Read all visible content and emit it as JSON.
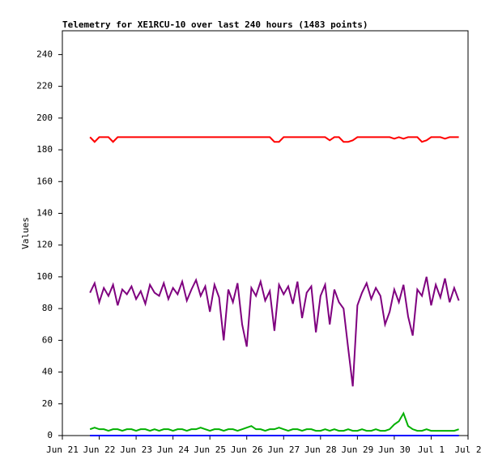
{
  "chart_data": {
    "type": "line",
    "title": "Telemetry for XE1RCU-10 over last 240 hours (1483 points)",
    "ylabel": "Values",
    "x": [
      0.75,
      0.875,
      1,
      1.125,
      1.25,
      1.375,
      1.5,
      1.625,
      1.75,
      1.875,
      2,
      2.125,
      2.25,
      2.375,
      2.5,
      2.625,
      2.75,
      2.875,
      3,
      3.125,
      3.25,
      3.375,
      3.5,
      3.625,
      3.75,
      3.875,
      4,
      4.125,
      4.25,
      4.375,
      4.5,
      4.625,
      4.75,
      4.875,
      5,
      5.125,
      5.25,
      5.375,
      5.5,
      5.625,
      5.75,
      5.875,
      6,
      6.125,
      6.25,
      6.375,
      6.5,
      6.625,
      6.75,
      6.875,
      7,
      7.125,
      7.25,
      7.375,
      7.5,
      7.625,
      7.75,
      7.875,
      8,
      8.125,
      8.25,
      8.375,
      8.5,
      8.625,
      8.75,
      8.875,
      9,
      9.125,
      9.25,
      9.375,
      9.5,
      9.625,
      9.75,
      9.875,
      10,
      10.125,
      10.25,
      10.375,
      10.5,
      10.625,
      10.75
    ],
    "series": [
      {
        "color": "#ff0000",
        "values": [
          188,
          185,
          188,
          188,
          188,
          185,
          188,
          188,
          188,
          188,
          188,
          188,
          188,
          188,
          188,
          188,
          188,
          188,
          188,
          188,
          188,
          188,
          188,
          188,
          188,
          188,
          188,
          188,
          188,
          188,
          188,
          188,
          188,
          188,
          188,
          188,
          188,
          188,
          188,
          188,
          185,
          185,
          188,
          188,
          188,
          188,
          188,
          188,
          188,
          188,
          188,
          188,
          186,
          188,
          188,
          185,
          185,
          186,
          188,
          188,
          188,
          188,
          188,
          188,
          188,
          188,
          187,
          188,
          187,
          188,
          188,
          188,
          185,
          186,
          188,
          188,
          188,
          187,
          188,
          188,
          188
        ]
      },
      {
        "color": "#7f007f",
        "values": [
          90,
          96,
          84,
          93,
          88,
          95,
          82,
          92,
          89,
          94,
          86,
          91,
          83,
          95,
          90,
          88,
          96,
          86,
          93,
          89,
          97,
          85,
          92,
          98,
          88,
          94,
          78,
          95,
          87,
          60,
          92,
          84,
          96,
          70,
          56,
          93,
          88,
          97,
          85,
          91,
          66,
          95,
          89,
          94,
          83,
          97,
          74,
          90,
          94,
          65,
          88,
          95,
          70,
          92,
          84,
          80,
          55,
          31,
          82,
          90,
          96,
          86,
          93,
          88,
          70,
          78,
          92,
          84,
          95,
          75,
          63,
          92,
          88,
          100,
          82,
          95,
          87,
          99,
          84,
          93,
          85
        ]
      },
      {
        "color": "#00b000",
        "values": [
          4,
          5,
          4,
          4,
          3,
          4,
          4,
          3,
          4,
          4,
          3,
          4,
          4,
          3,
          4,
          3,
          4,
          4,
          3,
          4,
          4,
          3,
          4,
          4,
          5,
          4,
          3,
          4,
          4,
          3,
          4,
          4,
          3,
          4,
          5,
          6,
          4,
          4,
          3,
          4,
          4,
          5,
          4,
          3,
          4,
          4,
          3,
          4,
          4,
          3,
          3,
          4,
          3,
          4,
          3,
          3,
          4,
          3,
          3,
          4,
          3,
          3,
          4,
          3,
          3,
          4,
          7,
          9,
          14,
          6,
          4,
          3,
          3,
          4,
          3,
          3,
          3,
          3,
          3,
          3,
          4
        ]
      },
      {
        "color": "#0000ff",
        "values": [
          0,
          0,
          0,
          0,
          0,
          0,
          0,
          0,
          0,
          0,
          0,
          0,
          0,
          0,
          0,
          0,
          0,
          0,
          0,
          0,
          0,
          0,
          0,
          0,
          0,
          0,
          0,
          0,
          0,
          0,
          0,
          0,
          0,
          0,
          0,
          0,
          0,
          0,
          0,
          0,
          0,
          0,
          0,
          0,
          0,
          0,
          0,
          0,
          0,
          0,
          0,
          0,
          0,
          0,
          0,
          0,
          0,
          0,
          0,
          0,
          0,
          0,
          0,
          0,
          0,
          0,
          0,
          0,
          0,
          0,
          0,
          0,
          0,
          0,
          0,
          0,
          0,
          0,
          0,
          0,
          0
        ]
      }
    ],
    "xlim": [
      0,
      11
    ],
    "xticks": [
      {
        "value": 0,
        "label": "Jun 21"
      },
      {
        "value": 1,
        "label": "Jun 22"
      },
      {
        "value": 2,
        "label": "Jun 23"
      },
      {
        "value": 3,
        "label": "Jun 24"
      },
      {
        "value": 4,
        "label": "Jun 25"
      },
      {
        "value": 5,
        "label": "Jun 26"
      },
      {
        "value": 6,
        "label": "Jun 27"
      },
      {
        "value": 7,
        "label": "Jun 28"
      },
      {
        "value": 8,
        "label": "Jun 29"
      },
      {
        "value": 9,
        "label": "Jun 30"
      },
      {
        "value": 10,
        "label": "Jul 1"
      },
      {
        "value": 11,
        "label": "Jul 2"
      }
    ],
    "ylim": [
      0,
      255
    ],
    "yticks": [
      0,
      20,
      40,
      60,
      80,
      100,
      120,
      140,
      160,
      180,
      200,
      220,
      240
    ],
    "grid": false
  }
}
